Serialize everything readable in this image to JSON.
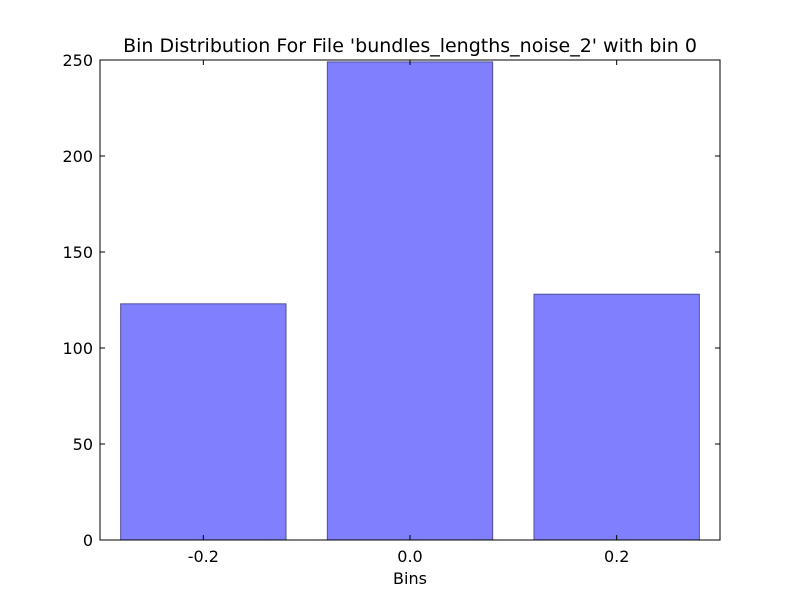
{
  "chart_data": {
    "type": "bar",
    "title": "Bin Distribution For File 'bundles_lengths_noise_2' with bin 0",
    "xlabel": "Bins",
    "ylabel": "",
    "categories": [
      "-0.2",
      "0.0",
      "0.2"
    ],
    "x": [
      -0.2,
      0.0,
      0.2
    ],
    "values": [
      123,
      249,
      128
    ],
    "xlim": [
      -0.3,
      0.3
    ],
    "ylim": [
      0,
      250
    ],
    "yticks": [
      "0",
      "50",
      "100",
      "150",
      "200",
      "250"
    ],
    "grid": false,
    "legend": "none",
    "colors": {
      "bar_fill": "#8080ff",
      "bar_edge": "#4d4d99",
      "axes": "#000000",
      "background": "#ffffff"
    }
  }
}
